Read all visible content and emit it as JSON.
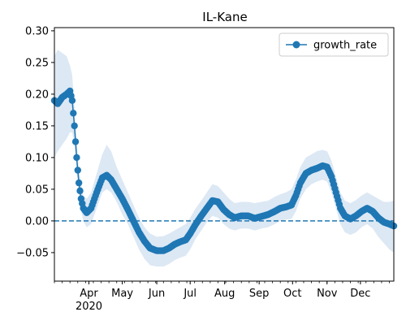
{
  "chart_data": {
    "type": "line",
    "title": "IL-Kane",
    "xlabel": "",
    "ylabel": "",
    "x_range": [
      "2020-03-01",
      "2020-12-31"
    ],
    "ylim": [
      -0.095,
      0.305
    ],
    "y_ticks": [
      -0.05,
      0.0,
      0.05,
      0.1,
      0.15,
      0.2,
      0.25,
      0.3
    ],
    "y_tick_labels": [
      "−0.05",
      "0.00",
      "0.05",
      "0.10",
      "0.15",
      "0.20",
      "0.25",
      "0.30"
    ],
    "x_ticks": [
      {
        "date": "2020-04-01",
        "label": "Apr",
        "sublabel": "2020"
      },
      {
        "date": "2020-05-01",
        "label": "May",
        "sublabel": ""
      },
      {
        "date": "2020-06-01",
        "label": "Jun",
        "sublabel": ""
      },
      {
        "date": "2020-07-01",
        "label": "Jul",
        "sublabel": ""
      },
      {
        "date": "2020-08-01",
        "label": "Aug",
        "sublabel": ""
      },
      {
        "date": "2020-09-01",
        "label": "Sep",
        "sublabel": ""
      },
      {
        "date": "2020-10-01",
        "label": "Oct",
        "sublabel": ""
      },
      {
        "date": "2020-11-01",
        "label": "Nov",
        "sublabel": ""
      },
      {
        "date": "2020-12-01",
        "label": "Dec",
        "sublabel": ""
      }
    ],
    "grid": false,
    "legend": {
      "position": "upper right",
      "entries": [
        "growth_rate"
      ]
    },
    "reference_line": {
      "y": 0.0,
      "style": "dashed"
    },
    "series": [
      {
        "name": "growth_rate",
        "color": "#1f77b4",
        "band_color": "#dce8f4",
        "marker": "circle",
        "points": [
          {
            "x": "2020-03-01",
            "y": 0.19,
            "lo": 0.1,
            "hi": 0.26
          },
          {
            "x": "2020-03-04",
            "y": 0.185,
            "lo": 0.11,
            "hi": 0.27
          },
          {
            "x": "2020-03-08",
            "y": 0.195,
            "lo": 0.12,
            "hi": 0.265
          },
          {
            "x": "2020-03-12",
            "y": 0.2,
            "lo": 0.13,
            "hi": 0.26
          },
          {
            "x": "2020-03-15",
            "y": 0.205,
            "lo": 0.14,
            "hi": 0.245
          },
          {
            "x": "2020-03-17",
            "y": 0.19,
            "lo": 0.14,
            "hi": 0.23
          },
          {
            "x": "2020-03-19",
            "y": 0.15,
            "lo": 0.12,
            "hi": 0.18
          },
          {
            "x": "2020-03-21",
            "y": 0.1,
            "lo": 0.08,
            "hi": 0.125
          },
          {
            "x": "2020-03-23",
            "y": 0.06,
            "lo": 0.04,
            "hi": 0.08
          },
          {
            "x": "2020-03-25",
            "y": 0.035,
            "lo": 0.015,
            "hi": 0.06
          },
          {
            "x": "2020-03-27",
            "y": 0.02,
            "lo": 0.0,
            "hi": 0.04
          },
          {
            "x": "2020-03-30",
            "y": 0.013,
            "lo": -0.01,
            "hi": 0.035
          },
          {
            "x": "2020-04-03",
            "y": 0.02,
            "lo": -0.005,
            "hi": 0.045
          },
          {
            "x": "2020-04-08",
            "y": 0.045,
            "lo": 0.02,
            "hi": 0.075
          },
          {
            "x": "2020-04-13",
            "y": 0.068,
            "lo": 0.045,
            "hi": 0.105
          },
          {
            "x": "2020-04-17",
            "y": 0.072,
            "lo": 0.05,
            "hi": 0.12
          },
          {
            "x": "2020-04-21",
            "y": 0.065,
            "lo": 0.045,
            "hi": 0.11
          },
          {
            "x": "2020-04-26",
            "y": 0.05,
            "lo": 0.03,
            "hi": 0.085
          },
          {
            "x": "2020-05-01",
            "y": 0.035,
            "lo": 0.01,
            "hi": 0.065
          },
          {
            "x": "2020-05-06",
            "y": 0.018,
            "lo": -0.005,
            "hi": 0.045
          },
          {
            "x": "2020-05-11",
            "y": 0.0,
            "lo": -0.025,
            "hi": 0.025
          },
          {
            "x": "2020-05-16",
            "y": -0.018,
            "lo": -0.045,
            "hi": 0.005
          },
          {
            "x": "2020-05-21",
            "y": -0.032,
            "lo": -0.06,
            "hi": -0.01
          },
          {
            "x": "2020-05-26",
            "y": -0.043,
            "lo": -0.07,
            "hi": -0.02
          },
          {
            "x": "2020-06-01",
            "y": -0.047,
            "lo": -0.072,
            "hi": -0.025
          },
          {
            "x": "2020-06-07",
            "y": -0.047,
            "lo": -0.072,
            "hi": -0.024
          },
          {
            "x": "2020-06-12",
            "y": -0.043,
            "lo": -0.068,
            "hi": -0.02
          },
          {
            "x": "2020-06-17",
            "y": -0.037,
            "lo": -0.062,
            "hi": -0.015
          },
          {
            "x": "2020-06-22",
            "y": -0.033,
            "lo": -0.058,
            "hi": -0.01
          },
          {
            "x": "2020-06-27",
            "y": -0.03,
            "lo": -0.055,
            "hi": -0.005
          },
          {
            "x": "2020-07-01",
            "y": -0.02,
            "lo": -0.045,
            "hi": 0.005
          },
          {
            "x": "2020-07-06",
            "y": -0.005,
            "lo": -0.028,
            "hi": 0.02
          },
          {
            "x": "2020-07-11",
            "y": 0.008,
            "lo": -0.015,
            "hi": 0.032
          },
          {
            "x": "2020-07-16",
            "y": 0.02,
            "lo": -0.002,
            "hi": 0.045
          },
          {
            "x": "2020-07-21",
            "y": 0.032,
            "lo": 0.008,
            "hi": 0.058
          },
          {
            "x": "2020-07-26",
            "y": 0.03,
            "lo": 0.005,
            "hi": 0.055
          },
          {
            "x": "2020-07-31",
            "y": 0.018,
            "lo": -0.005,
            "hi": 0.045
          },
          {
            "x": "2020-08-05",
            "y": 0.01,
            "lo": -0.012,
            "hi": 0.035
          },
          {
            "x": "2020-08-10",
            "y": 0.005,
            "lo": -0.015,
            "hi": 0.028
          },
          {
            "x": "2020-08-16",
            "y": 0.008,
            "lo": -0.012,
            "hi": 0.03
          },
          {
            "x": "2020-08-22",
            "y": 0.008,
            "lo": -0.012,
            "hi": 0.03
          },
          {
            "x": "2020-08-28",
            "y": 0.004,
            "lo": -0.015,
            "hi": 0.028
          },
          {
            "x": "2020-09-03",
            "y": 0.007,
            "lo": -0.012,
            "hi": 0.03
          },
          {
            "x": "2020-09-09",
            "y": 0.01,
            "lo": -0.01,
            "hi": 0.032
          },
          {
            "x": "2020-09-15",
            "y": 0.015,
            "lo": -0.005,
            "hi": 0.038
          },
          {
            "x": "2020-09-20",
            "y": 0.02,
            "lo": 0.0,
            "hi": 0.042
          },
          {
            "x": "2020-09-25",
            "y": 0.022,
            "lo": 0.002,
            "hi": 0.045
          },
          {
            "x": "2020-09-30",
            "y": 0.025,
            "lo": 0.003,
            "hi": 0.05
          },
          {
            "x": "2020-10-04",
            "y": 0.04,
            "lo": 0.015,
            "hi": 0.065
          },
          {
            "x": "2020-10-08",
            "y": 0.06,
            "lo": 0.035,
            "hi": 0.085
          },
          {
            "x": "2020-10-13",
            "y": 0.075,
            "lo": 0.05,
            "hi": 0.1
          },
          {
            "x": "2020-10-18",
            "y": 0.08,
            "lo": 0.058,
            "hi": 0.105
          },
          {
            "x": "2020-10-23",
            "y": 0.083,
            "lo": 0.062,
            "hi": 0.11
          },
          {
            "x": "2020-10-28",
            "y": 0.087,
            "lo": 0.065,
            "hi": 0.112
          },
          {
            "x": "2020-11-01",
            "y": 0.085,
            "lo": 0.062,
            "hi": 0.11
          },
          {
            "x": "2020-11-05",
            "y": 0.07,
            "lo": 0.045,
            "hi": 0.095
          },
          {
            "x": "2020-11-09",
            "y": 0.045,
            "lo": 0.02,
            "hi": 0.07
          },
          {
            "x": "2020-11-13",
            "y": 0.02,
            "lo": -0.005,
            "hi": 0.045
          },
          {
            "x": "2020-11-17",
            "y": 0.008,
            "lo": -0.018,
            "hi": 0.032
          },
          {
            "x": "2020-11-22",
            "y": 0.003,
            "lo": -0.022,
            "hi": 0.028
          },
          {
            "x": "2020-11-27",
            "y": 0.008,
            "lo": -0.018,
            "hi": 0.033
          },
          {
            "x": "2020-12-02",
            "y": 0.015,
            "lo": -0.01,
            "hi": 0.04
          },
          {
            "x": "2020-12-07",
            "y": 0.02,
            "lo": -0.005,
            "hi": 0.045
          },
          {
            "x": "2020-12-12",
            "y": 0.015,
            "lo": -0.012,
            "hi": 0.04
          },
          {
            "x": "2020-12-17",
            "y": 0.005,
            "lo": -0.025,
            "hi": 0.035
          },
          {
            "x": "2020-12-22",
            "y": -0.002,
            "lo": -0.035,
            "hi": 0.03
          },
          {
            "x": "2020-12-27",
            "y": -0.005,
            "lo": -0.045,
            "hi": 0.03
          },
          {
            "x": "2020-12-31",
            "y": -0.008,
            "lo": -0.05,
            "hi": 0.032
          }
        ]
      }
    ]
  }
}
